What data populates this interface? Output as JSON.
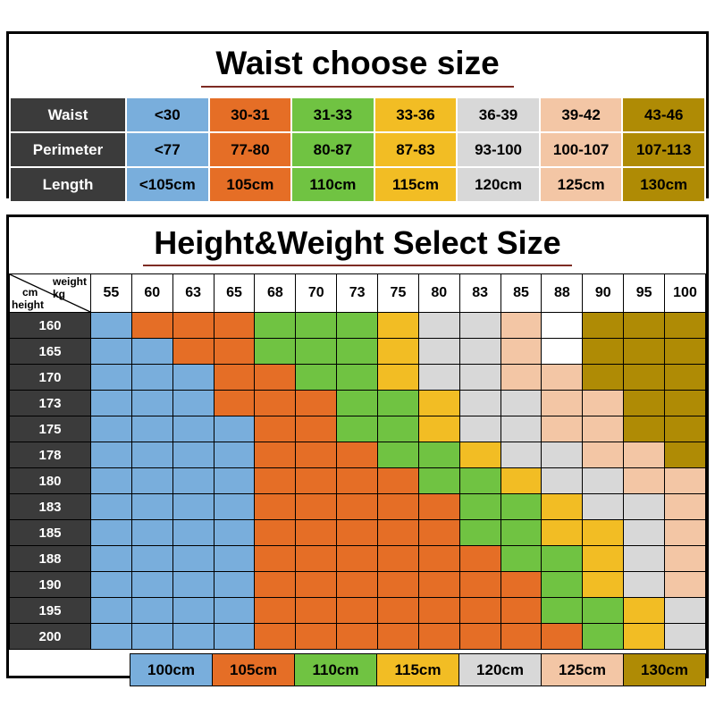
{
  "chart_data": [
    {
      "type": "table",
      "title": "Waist choose size",
      "row_headers": [
        "Waist",
        "Perimeter",
        "Length"
      ],
      "rows": [
        [
          "<30",
          "30-31",
          "31-33",
          "33-36",
          "36-39",
          "39-42",
          "43-46"
        ],
        [
          "<77",
          "77-80",
          "80-87",
          "87-83",
          "93-100",
          "100-107",
          "107-113"
        ],
        [
          "<105cm",
          "105cm",
          "110cm",
          "115cm",
          "120cm",
          "125cm",
          "130cm"
        ]
      ],
      "column_colors": [
        "#79AEDC",
        "#E56E26",
        "#70C342",
        "#F2BD24",
        "#D8D8D8",
        "#F3C6A5",
        "#AF8B05"
      ],
      "header_bg": "#3B3B3B"
    },
    {
      "type": "heatmap",
      "title": "Height&Weight Select Size",
      "corner": {
        "weight_label": "weight",
        "weight_unit": "kg",
        "height_unit": "cm",
        "height_label": "height"
      },
      "weights": [
        "55",
        "60",
        "63",
        "65",
        "68",
        "70",
        "73",
        "75",
        "80",
        "83",
        "85",
        "88",
        "90",
        "95",
        "100"
      ],
      "heights": [
        "160",
        "165",
        "170",
        "173",
        "175",
        "178",
        "180",
        "183",
        "185",
        "188",
        "190",
        "195",
        "200"
      ],
      "palette": {
        "B": "#79AEDC",
        "O": "#E56E26",
        "G": "#70C342",
        "Y": "#F2BD24",
        "E": "#D8D8D8",
        "P": "#F3C6A5",
        "D": "#AF8B05",
        "W": "#FFFFFF"
      },
      "size_by_code": {
        "B": "100cm",
        "O": "105cm",
        "G": "110cm",
        "Y": "115cm",
        "E": "120cm",
        "P": "125cm",
        "D": "130cm",
        "W": "none"
      },
      "rows": [
        "BOOOGGGYEEPWDDD",
        "BBOOGGGYEEPWDDD",
        "BBBOOGGYEEPPDDD",
        "BBBOOOGGYEEPPDD",
        "BBBBOOGGYEEPPDD",
        "BBBBOOOGGYEEPPD",
        "BBBBOOOOGGYEEPP",
        "BBBBOOOOOGGYEEP",
        "BBBBOOOOOGGYYEP",
        "BBBBOOOOOOGGYEP",
        "BBBBOOOOOOOGYEP",
        "BBBBOOOOOOOGGYE",
        "BBBBOOOOOOOOGYE"
      ],
      "legend": [
        {
          "label": "100cm",
          "color": "#79AEDC"
        },
        {
          "label": "105cm",
          "color": "#E56E26"
        },
        {
          "label": "110cm",
          "color": "#70C342"
        },
        {
          "label": "115cm",
          "color": "#F2BD24"
        },
        {
          "label": "120cm",
          "color": "#D8D8D8"
        },
        {
          "label": "125cm",
          "color": "#F3C6A5"
        },
        {
          "label": "130cm",
          "color": "#AF8B05"
        }
      ]
    }
  ]
}
